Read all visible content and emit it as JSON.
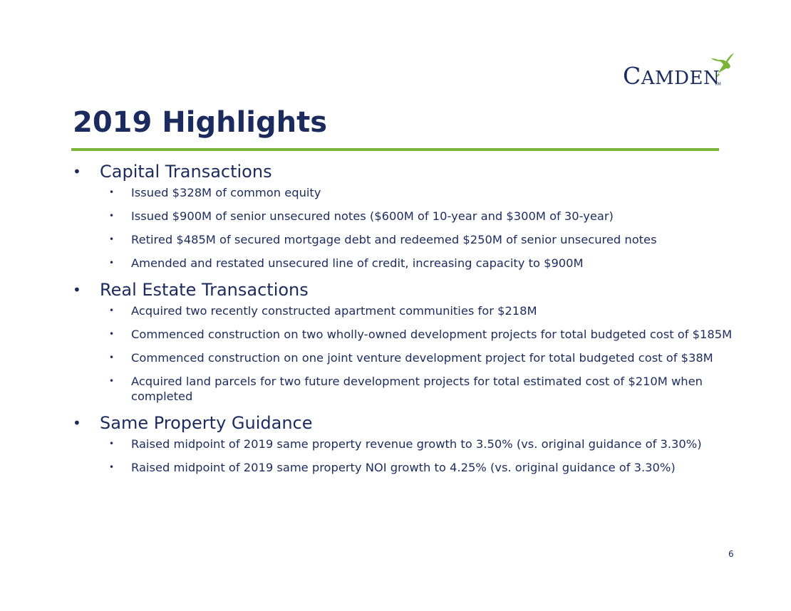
{
  "logo": {
    "text_first": "C",
    "text_rest": "AMDEN",
    "trademark": "TM"
  },
  "title": "2019 Highlights",
  "colors": {
    "navy": "#1c2b5e",
    "green": "#7ab539"
  },
  "sections": [
    {
      "heading": "Capital Transactions",
      "items": [
        "Issued $328M of common equity",
        "Issued $900M of senior unsecured notes ($600M of 10-year and $300M of 30-year)",
        "Retired $485M of secured mortgage debt and redeemed $250M of senior unsecured notes",
        "Amended and restated unsecured line of credit, increasing capacity to $900M"
      ]
    },
    {
      "heading": "Real Estate Transactions",
      "items": [
        "Acquired two recently constructed apartment communities for $218M",
        "Commenced construction on two wholly-owned development projects for total budgeted cost of $185M",
        "Commenced construction on one joint venture development project for total budgeted cost of $38M",
        "Acquired land parcels for two future development projects for total estimated cost of $210M when completed"
      ]
    },
    {
      "heading": "Same Property Guidance",
      "items": [
        "Raised midpoint of 2019 same property revenue growth to 3.50% (vs. original guidance of 3.30%)",
        "Raised midpoint of 2019 same property NOI growth to 4.25% (vs. original guidance of 3.30%)"
      ]
    }
  ],
  "page_number": "6"
}
